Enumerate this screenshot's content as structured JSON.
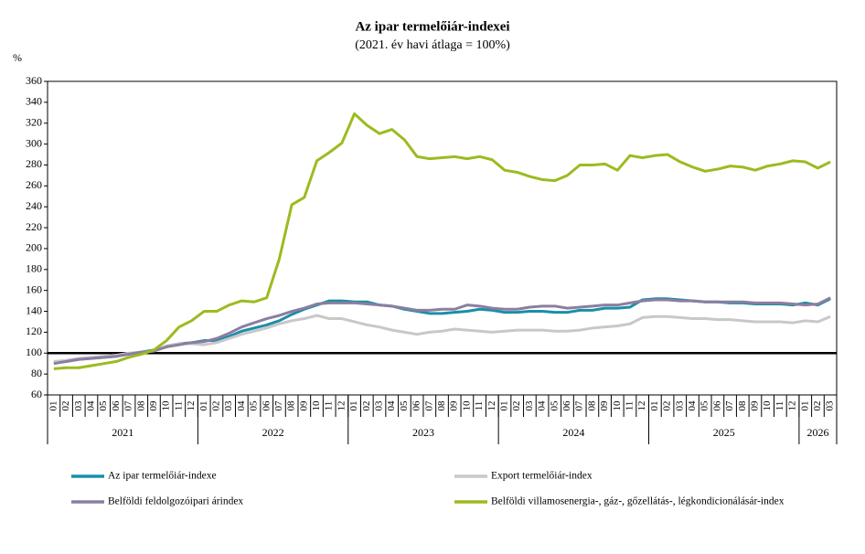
{
  "chart_data": {
    "type": "line",
    "title": "Az ipar termelőiár-indexei",
    "subtitle": "(2021. év havi átlaga = 100%)",
    "y_axis_label": "%",
    "categories": [
      "01",
      "02",
      "03",
      "04",
      "05",
      "06",
      "07",
      "08",
      "09",
      "10",
      "11",
      "12",
      "01",
      "02",
      "03",
      "04",
      "05",
      "06",
      "07",
      "08",
      "09",
      "10",
      "11",
      "12",
      "01",
      "02",
      "03",
      "04",
      "05",
      "06",
      "07",
      "08",
      "09",
      "10",
      "11",
      "12",
      "01",
      "02",
      "03",
      "04",
      "05",
      "06",
      "07",
      "08",
      "09",
      "10",
      "11",
      "12",
      "01",
      "02",
      "03",
      "04",
      "05",
      "06",
      "07",
      "08",
      "09",
      "10",
      "11",
      "12",
      "01",
      "02",
      "03"
    ],
    "year_groups": [
      {
        "label": "2021",
        "span": 12
      },
      {
        "label": "2022",
        "span": 12
      },
      {
        "label": "2023",
        "span": 12
      },
      {
        "label": "2024",
        "span": 12
      },
      {
        "label": "2025",
        "span": 12
      },
      {
        "label": "2026",
        "span": 3
      }
    ],
    "ylim": [
      60,
      360
    ],
    "yticks": [
      60,
      80,
      100,
      120,
      140,
      160,
      180,
      200,
      220,
      240,
      260,
      280,
      300,
      320,
      340,
      360
    ],
    "reference_line": 100,
    "legend": "bottom",
    "series": [
      {
        "name": "Az ipar termelőiár-indexe",
        "color": "#1a8fa8",
        "values": [
          91,
          92,
          94,
          95,
          96,
          97,
          99,
          101,
          103,
          106,
          109,
          110,
          112,
          112,
          116,
          121,
          124,
          127,
          131,
          137,
          142,
          146,
          150,
          150,
          149,
          149,
          146,
          145,
          142,
          140,
          138,
          138,
          139,
          140,
          142,
          141,
          139,
          139,
          140,
          140,
          139,
          139,
          141,
          141,
          143,
          143,
          144,
          151,
          152,
          152,
          151,
          150,
          149,
          149,
          148,
          148,
          147,
          147,
          147,
          146,
          148,
          146,
          152
        ]
      },
      {
        "name": "Export termelőiár-index",
        "color": "#c8c8c8",
        "values": [
          92,
          93,
          95,
          96,
          97,
          98,
          100,
          101,
          102,
          107,
          109,
          109,
          108,
          110,
          114,
          118,
          121,
          124,
          128,
          131,
          133,
          136,
          133,
          133,
          130,
          127,
          125,
          122,
          120,
          118,
          120,
          121,
          123,
          122,
          121,
          120,
          121,
          122,
          122,
          122,
          121,
          121,
          122,
          124,
          125,
          126,
          128,
          134,
          135,
          135,
          134,
          133,
          133,
          132,
          132,
          131,
          130,
          130,
          130,
          129,
          131,
          130,
          135
        ]
      },
      {
        "name": "Belföldi feldolgozóipari árindex",
        "color": "#8c7ea0",
        "values": [
          90,
          92,
          94,
          95,
          96,
          97,
          99,
          101,
          102,
          106,
          108,
          110,
          111,
          114,
          119,
          125,
          129,
          133,
          136,
          140,
          143,
          147,
          148,
          148,
          148,
          147,
          146,
          145,
          143,
          141,
          141,
          142,
          142,
          146,
          145,
          143,
          142,
          142,
          144,
          145,
          145,
          143,
          144,
          145,
          146,
          146,
          148,
          150,
          151,
          151,
          150,
          150,
          149,
          149,
          149,
          149,
          148,
          148,
          148,
          147,
          146,
          147,
          153
        ]
      },
      {
        "name": "Belföldi villamosenergia-, gáz-, gőzellátás-, légkondicionálásár-index",
        "color": "#9bbb1f",
        "values": [
          85,
          86,
          86,
          88,
          90,
          92,
          96,
          99,
          103,
          112,
          125,
          131,
          140,
          140,
          146,
          150,
          149,
          153,
          190,
          242,
          249,
          284,
          292,
          301,
          329,
          318,
          310,
          314,
          304,
          288,
          286,
          287,
          288,
          286,
          288,
          285,
          275,
          273,
          269,
          266,
          265,
          270,
          280,
          280,
          281,
          275,
          289,
          287,
          289,
          290,
          283,
          278,
          274,
          276,
          279,
          278,
          275,
          279,
          281,
          284,
          283,
          277,
          283
        ]
      }
    ]
  }
}
